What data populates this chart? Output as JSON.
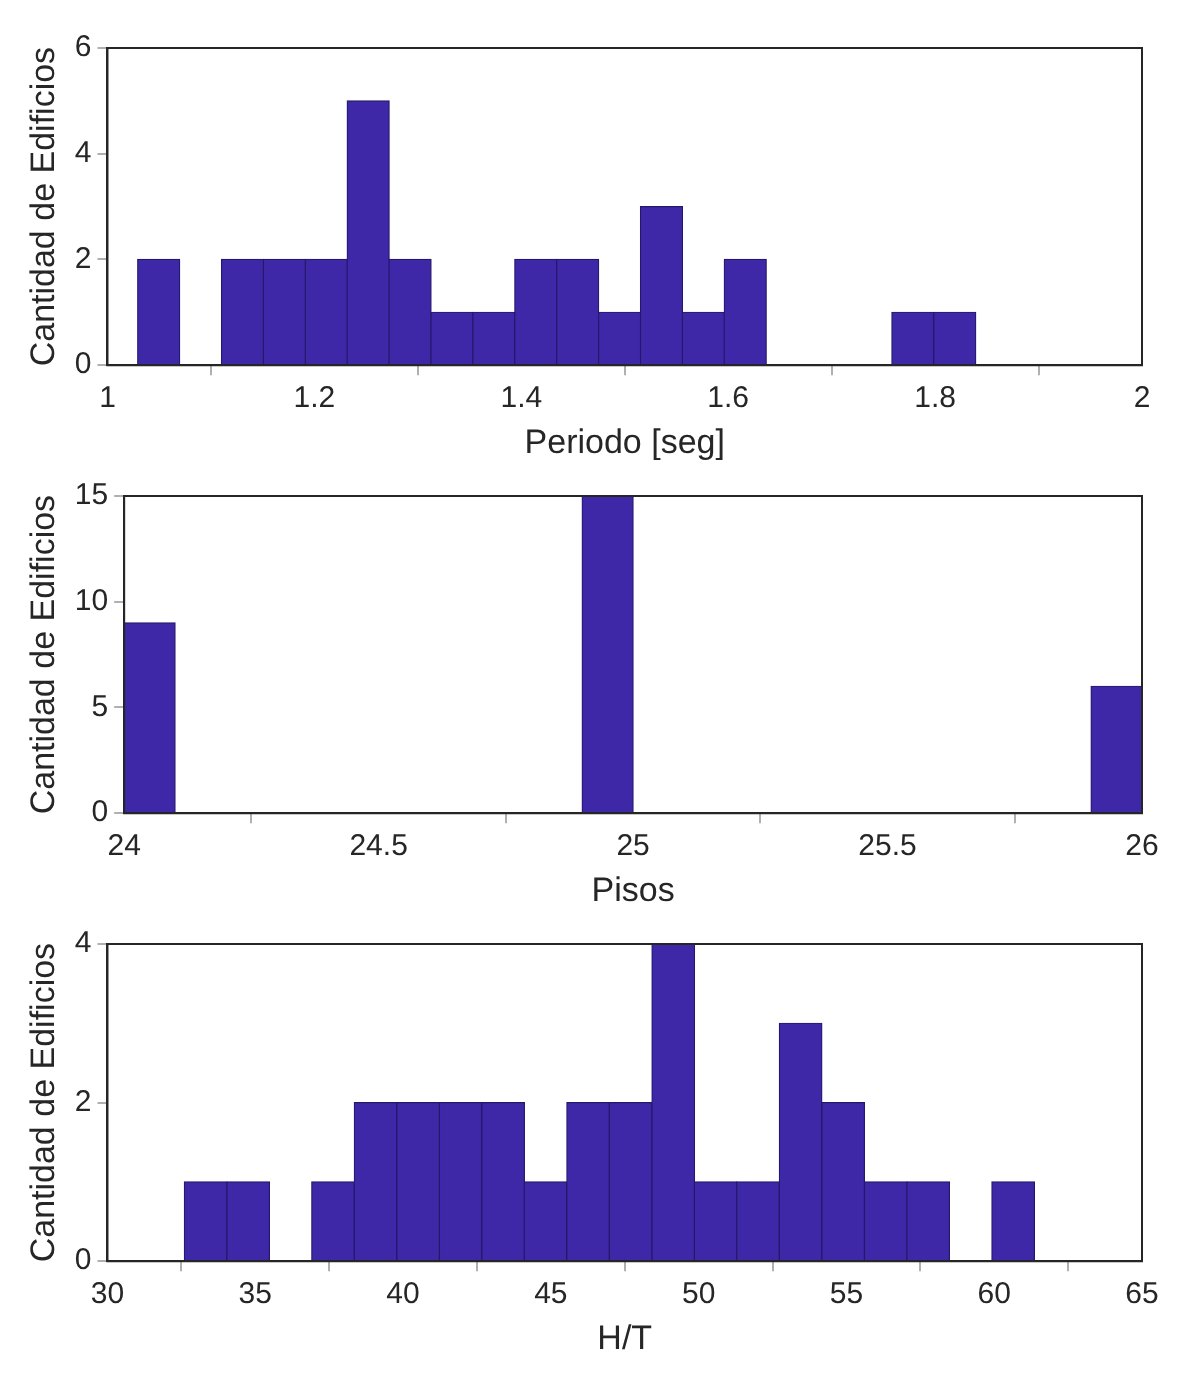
{
  "chart_data": [
    {
      "type": "histogram",
      "xlabel": "Periodo [seg]",
      "ylabel": "Cantidad de Edificios",
      "color": "#3f28a8",
      "grid": false,
      "bins": [
        1.029,
        1.07,
        1.11,
        1.151,
        1.191,
        1.232,
        1.272,
        1.313,
        1.353,
        1.394,
        1.434,
        1.475,
        1.515,
        1.556,
        1.596,
        1.637,
        1.677,
        1.718,
        1.758,
        1.799,
        1.839
      ],
      "values": [
        2,
        0,
        2,
        2,
        2,
        5,
        2,
        1,
        1,
        2,
        2,
        1,
        3,
        1,
        2,
        0,
        0,
        0,
        1,
        1
      ],
      "xlim": [
        1,
        2
      ],
      "xticks": [
        1,
        1.2,
        1.4,
        1.6,
        1.8,
        2
      ],
      "ylim": [
        0,
        6
      ],
      "yticks": [
        0,
        2,
        4,
        6
      ]
    },
    {
      "type": "histogram",
      "xlabel": "Pisos",
      "ylabel": "Cantidad de Edificios",
      "color": "#3f28a8",
      "grid": false,
      "bins": [
        24,
        24.1,
        24.2,
        24.3,
        24.4,
        24.5,
        24.6,
        24.7,
        24.8,
        24.9,
        25,
        25.1,
        25.2,
        25.3,
        25.4,
        25.5,
        25.6,
        25.7,
        25.8,
        25.9,
        26
      ],
      "values": [
        9,
        0,
        0,
        0,
        0,
        0,
        0,
        0,
        0,
        15,
        0,
        0,
        0,
        0,
        0,
        0,
        0,
        0,
        0,
        6
      ],
      "xlim": [
        24,
        26
      ],
      "xticks": [
        24,
        24.5,
        25,
        25.5,
        26
      ],
      "ylim": [
        0,
        15
      ],
      "yticks": [
        0,
        5,
        10,
        15
      ]
    },
    {
      "type": "histogram",
      "xlabel": "H/T",
      "ylabel": "Cantidad de Edificios",
      "color": "#3f28a8",
      "grid": false,
      "bins": [
        32.6,
        34.04,
        35.48,
        36.91,
        38.35,
        39.79,
        41.23,
        42.67,
        44.1,
        45.54,
        46.98,
        48.42,
        49.86,
        51.29,
        52.73,
        54.17,
        55.61,
        57.05,
        58.48,
        59.92,
        61.36
      ],
      "values": [
        1,
        1,
        0,
        1,
        2,
        2,
        2,
        2,
        1,
        2,
        2,
        4,
        1,
        1,
        3,
        2,
        1,
        1,
        0,
        1
      ],
      "xlim": [
        30,
        65
      ],
      "xticks": [
        30,
        35,
        40,
        45,
        50,
        55,
        60,
        65
      ],
      "ylim": [
        0,
        4
      ],
      "yticks": [
        0,
        2,
        4
      ]
    }
  ]
}
